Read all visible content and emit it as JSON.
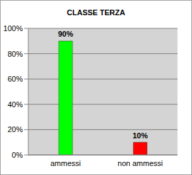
{
  "chart_data": {
    "type": "bar",
    "title": "CLASSE TERZA",
    "categories": [
      "ammessi",
      "non ammessi"
    ],
    "values": [
      90,
      10
    ],
    "value_labels": [
      "90%",
      "10%"
    ],
    "colors": [
      "#00ff00",
      "#ff0000"
    ],
    "ylim": [
      0,
      100
    ],
    "yticks": [
      {
        "value": 0,
        "label": "0%"
      },
      {
        "value": 20,
        "label": "20%"
      },
      {
        "value": 40,
        "label": "40%"
      },
      {
        "value": 60,
        "label": "60%"
      },
      {
        "value": 80,
        "label": "80%"
      },
      {
        "value": 100,
        "label": "100%"
      }
    ],
    "grid": true,
    "data_labels": true
  }
}
